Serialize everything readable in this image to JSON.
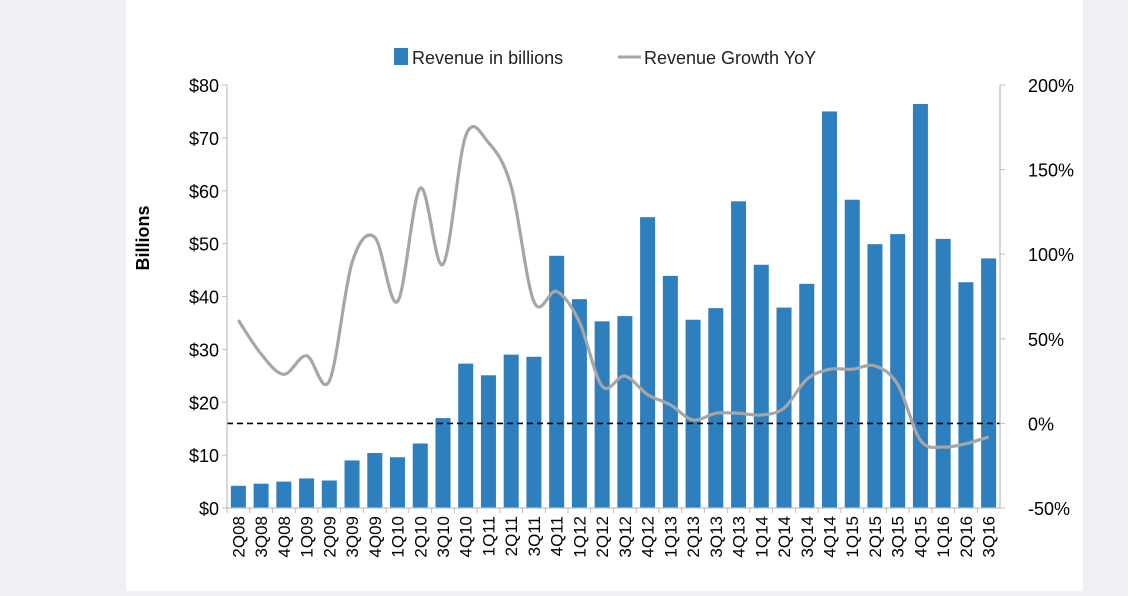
{
  "chart_data": {
    "type": "bar",
    "title": "",
    "ylabel": "Billions",
    "y2label": "",
    "ylim": [
      0,
      80
    ],
    "y2lim": [
      -50,
      200
    ],
    "y_ticks": [
      "$0",
      "$10",
      "$20",
      "$30",
      "$40",
      "$50",
      "$60",
      "$70",
      "$80"
    ],
    "y_tick_values": [
      0,
      10,
      20,
      30,
      40,
      50,
      60,
      70,
      80
    ],
    "y2_ticks": [
      "-50%",
      "0%",
      "50%",
      "100%",
      "150%",
      "200%"
    ],
    "y2_tick_values": [
      -50,
      0,
      50,
      100,
      150,
      200
    ],
    "legend_position": "top-center",
    "reference_line": {
      "axis": "y2",
      "value": 0,
      "style": "dashed"
    },
    "categories": [
      "2Q08",
      "3Q08",
      "4Q08",
      "1Q09",
      "2Q09",
      "3Q09",
      "4Q09",
      "1Q10",
      "2Q10",
      "3Q10",
      "4Q10",
      "1Q11",
      "2Q11",
      "3Q11",
      "4Q11",
      "1Q12",
      "2Q12",
      "3Q12",
      "4Q12",
      "1Q13",
      "2Q13",
      "3Q13",
      "4Q13",
      "1Q14",
      "2Q14",
      "3Q14",
      "4Q14",
      "1Q15",
      "2Q15",
      "3Q15",
      "4Q15",
      "1Q16",
      "2Q16",
      "3Q16"
    ],
    "series": [
      {
        "name": "Revenue in billions",
        "type": "bar",
        "axis": "y",
        "color": "#2e7fbd",
        "values": [
          4.2,
          4.6,
          5.0,
          5.6,
          5.2,
          9.0,
          10.4,
          9.6,
          12.2,
          17.0,
          27.3,
          25.1,
          29.0,
          28.6,
          47.7,
          39.5,
          35.3,
          36.3,
          55.0,
          43.9,
          35.6,
          37.8,
          58.0,
          46.0,
          37.9,
          42.4,
          75.0,
          58.3,
          49.9,
          51.8,
          76.4,
          50.9,
          42.7,
          47.2
        ]
      },
      {
        "name": "Revenue Growth YoY",
        "type": "line",
        "axis": "y2",
        "color": "#a6a6a6",
        "values": [
          61,
          41,
          29,
          40,
          25,
          95,
          110,
          72,
          139,
          94,
          170,
          166,
          140,
          72,
          78,
          60,
          22,
          28,
          17,
          11,
          2,
          6,
          6,
          5,
          9,
          26,
          32,
          32,
          34,
          23,
          -10,
          -14,
          -12,
          -8
        ]
      }
    ]
  }
}
